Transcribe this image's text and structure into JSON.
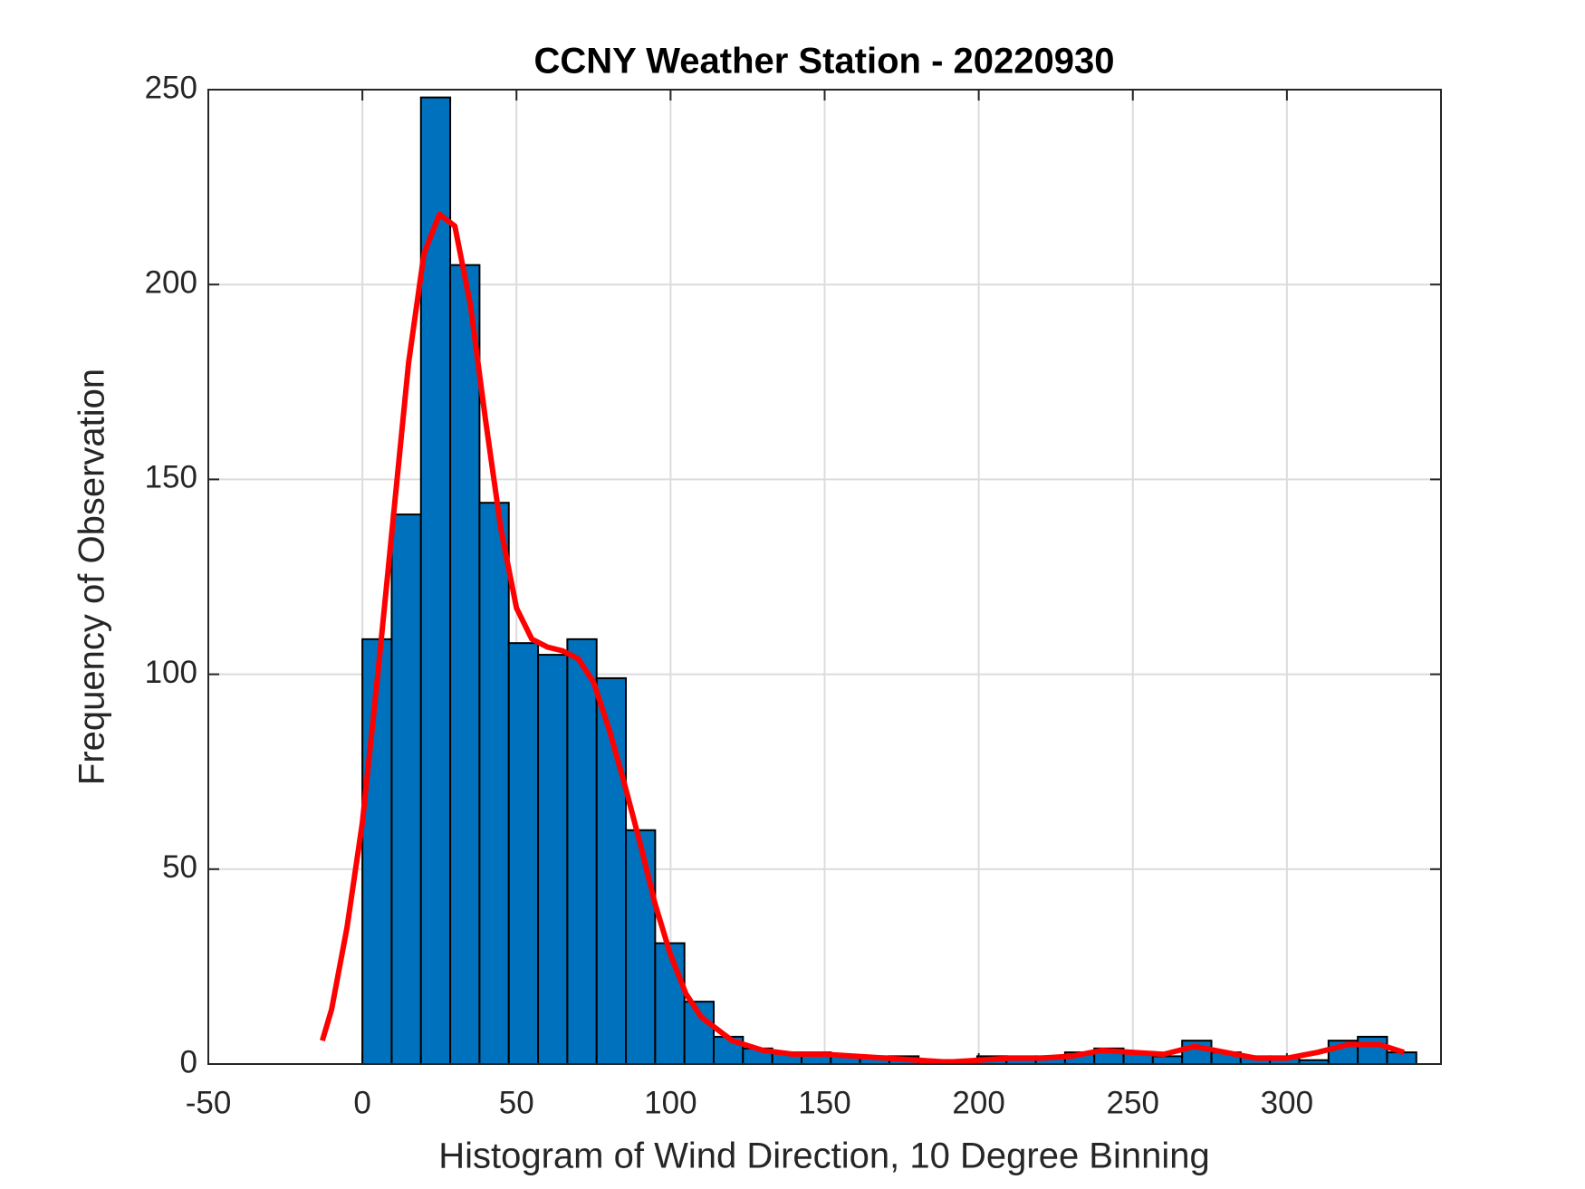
{
  "chart_data": {
    "type": "histogram",
    "title": "CCNY Weather Station - 20220930",
    "xlabel": "Histogram of Wind Direction, 10 Degree Binning",
    "ylabel": "Frequency of Observation",
    "bins": [
      0,
      9.5,
      19,
      28.5,
      38,
      47.5,
      57,
      66.5,
      76,
      85.5,
      95,
      104.5,
      114,
      123.5,
      133,
      142.5,
      152,
      161.5,
      171,
      180.5,
      190,
      199.5,
      209,
      218.5,
      228,
      237.5,
      247,
      256.5,
      266,
      275.5,
      285,
      294.5,
      304,
      313.5,
      323,
      332.5,
      342
    ],
    "counts": [
      109,
      141,
      248,
      205,
      144,
      108,
      105,
      109,
      99,
      60,
      31,
      16,
      7,
      4,
      3,
      3,
      2,
      2,
      2,
      1,
      1,
      2,
      2,
      2,
      3,
      4,
      3,
      2,
      6,
      3,
      2,
      2,
      1,
      6,
      7,
      3
    ],
    "color": "#0072bd",
    "curve": {
      "color": "#ff0000",
      "x": [
        -13,
        -10,
        -5,
        0,
        5,
        10,
        15,
        20,
        25,
        30,
        35,
        40,
        45,
        50,
        55,
        60,
        65,
        70,
        75,
        80,
        85,
        90,
        95,
        100,
        105,
        110,
        120,
        130,
        140,
        150,
        160,
        170,
        180,
        190,
        200,
        210,
        220,
        230,
        240,
        250,
        260,
        270,
        280,
        290,
        300,
        310,
        320,
        330,
        338
      ],
      "y": [
        6,
        14,
        35,
        62,
        100,
        140,
        180,
        208,
        218,
        215,
        195,
        165,
        137,
        117,
        109,
        107,
        106,
        104,
        98,
        86,
        72,
        57,
        41,
        28,
        18,
        12,
        6,
        3.5,
        2.5,
        2.5,
        2,
        1.5,
        1,
        0.5,
        1,
        1.5,
        1.5,
        2,
        3.5,
        3,
        2.5,
        4.5,
        3,
        1.5,
        1.5,
        3,
        5,
        5,
        3
      ]
    },
    "xlim": [
      -50,
      350
    ],
    "xticks": [
      -50,
      0,
      50,
      100,
      150,
      200,
      250,
      300
    ],
    "ylim": [
      0,
      250
    ],
    "yticks": [
      0,
      50,
      100,
      150,
      200,
      250
    ],
    "grid": true
  }
}
